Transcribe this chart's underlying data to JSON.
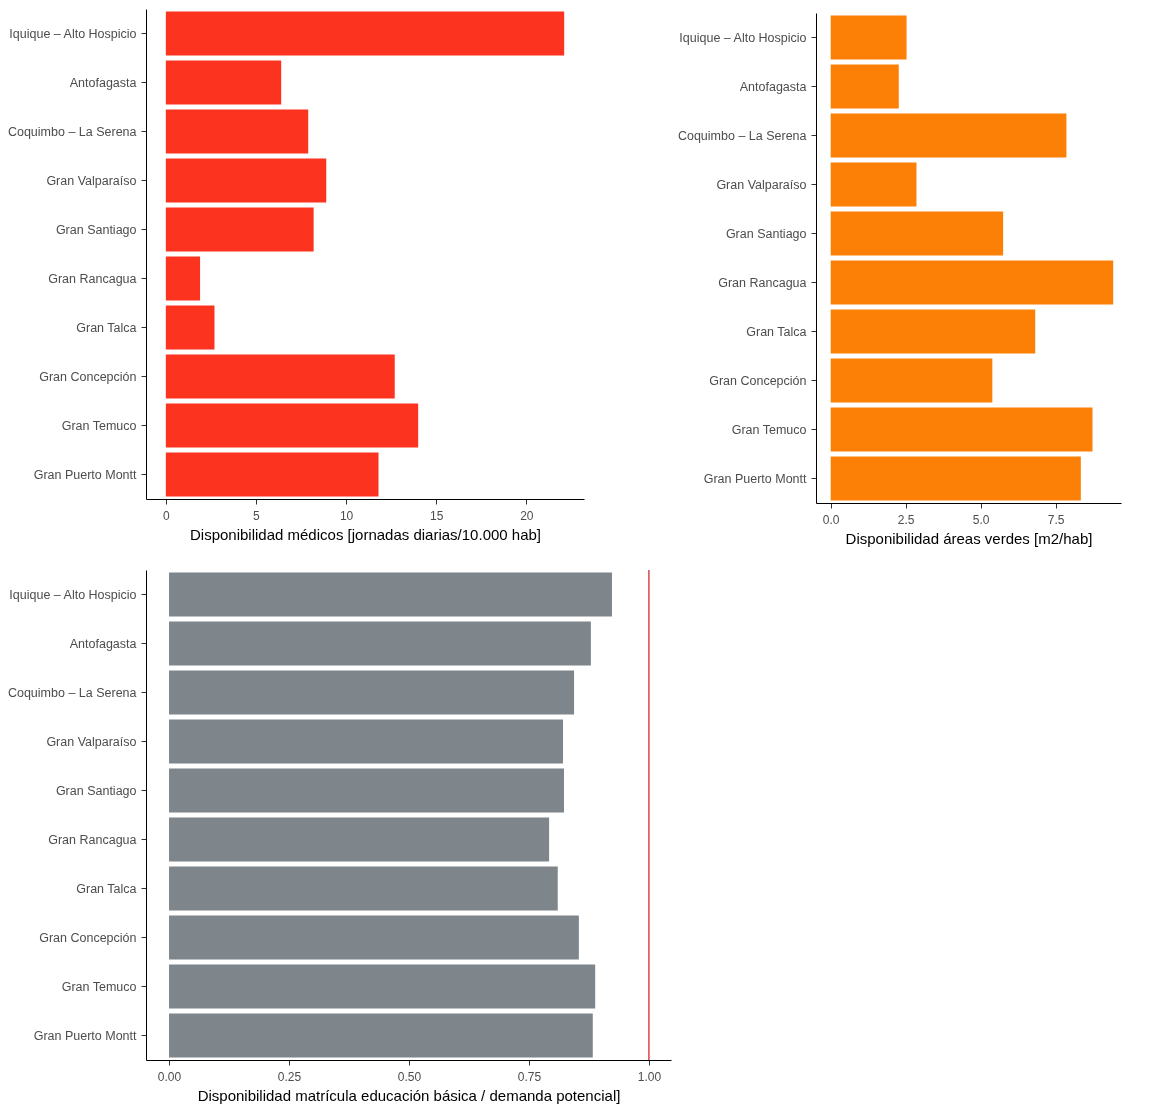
{
  "chart_data": [
    {
      "type": "bar",
      "orientation": "horizontal",
      "categories": [
        "Iquique – Alto Hospicio",
        "Antofagasta",
        "Coquimbo – La Serena",
        "Gran Valparaíso",
        "Gran Santiago",
        "Gran Rancagua",
        "Gran Talca",
        "Gran Concepción",
        "Gran Temuco",
        "Gran Puerto Montt"
      ],
      "values": [
        22.1,
        6.4,
        7.9,
        8.9,
        8.2,
        1.9,
        2.7,
        12.7,
        14.0,
        11.8
      ],
      "color": "#fc331f",
      "xlabel": "Disponibilidad médicos [jornadas diarias/10.000 hab]",
      "xlim": [
        -1.1,
        23.2
      ],
      "xticks": [
        0,
        5,
        10,
        15,
        20
      ],
      "grid": false
    },
    {
      "type": "bar",
      "orientation": "horizontal",
      "categories": [
        "Iquique – Alto Hospicio",
        "Antofagasta",
        "Coquimbo – La Serena",
        "Gran Valparaíso",
        "Gran Santiago",
        "Gran Rancagua",
        "Gran Talca",
        "Gran Concepción",
        "Gran Temuco",
        "Gran Puerto Montt"
      ],
      "values": [
        2.53,
        2.27,
        7.86,
        2.86,
        5.75,
        9.42,
        6.82,
        5.39,
        8.73,
        8.34
      ],
      "color": "#fb8005",
      "xlabel": "Disponibilidad áreas verdes [m2/hab]",
      "xlim": [
        -0.49,
        9.68
      ],
      "xticks": [
        {
          "value": 0,
          "label": "0.0"
        },
        {
          "value": 2.5,
          "label": "2.5"
        },
        {
          "value": 5,
          "label": "5.0"
        },
        {
          "value": 7.5,
          "label": "7.5"
        }
      ],
      "grid": false
    },
    {
      "type": "bar",
      "orientation": "horizontal",
      "categories": [
        "Iquique – Alto Hospicio",
        "Antofagasta",
        "Coquimbo – La Serena",
        "Gran Valparaíso",
        "Gran Santiago",
        "Gran Rancagua",
        "Gran Talca",
        "Gran Concepción",
        "Gran Temuco",
        "Gran Puerto Montt"
      ],
      "values": [
        0.923,
        0.879,
        0.844,
        0.821,
        0.823,
        0.792,
        0.81,
        0.854,
        0.888,
        0.883
      ],
      "color": "#7e868b",
      "xlabel": "Disponibilidad matrícula educación básica / demanda potencial]",
      "xlim": [
        -0.048,
        1.046
      ],
      "xticks": [
        {
          "value": 0,
          "label": "0.00"
        },
        {
          "value": 0.25,
          "label": "0.25"
        },
        {
          "value": 0.5,
          "label": "0.50"
        },
        {
          "value": 0.75,
          "label": "0.75"
        },
        {
          "value": 1,
          "label": "1.00"
        }
      ],
      "ref_lines": [
        {
          "axis": "x",
          "value": 1,
          "color": "#cc1a1a"
        }
      ],
      "grid": false
    }
  ]
}
